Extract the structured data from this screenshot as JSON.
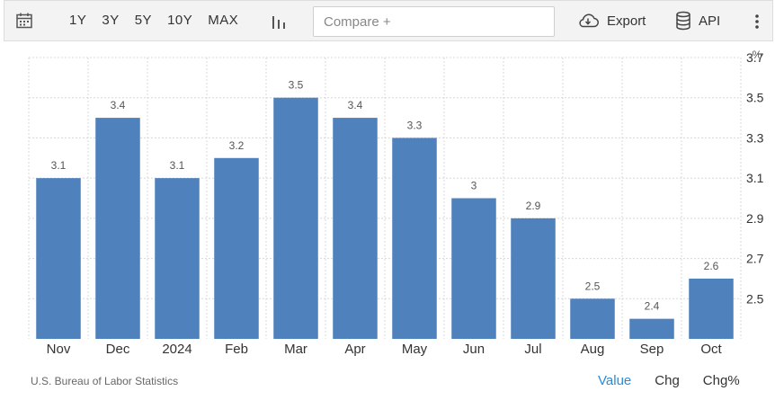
{
  "toolbar": {
    "ranges": [
      "1Y",
      "3Y",
      "5Y",
      "10Y",
      "MAX"
    ],
    "compare_placeholder": "Compare +",
    "export_label": "Export",
    "api_label": "API"
  },
  "colors": {
    "bar": "#4f81bd",
    "grid": "#d8d8d8",
    "active_tab": "#2a8bd8"
  },
  "icons": [
    "calendar-icon",
    "bar-chart-icon",
    "cloud-download-icon",
    "database-icon",
    "more-vertical-icon"
  ],
  "chart_data": {
    "type": "bar",
    "categories": [
      "Nov",
      "Dec",
      "2024",
      "Feb",
      "Mar",
      "Apr",
      "May",
      "Jun",
      "Jul",
      "Aug",
      "Sep",
      "Oct"
    ],
    "values": [
      3.1,
      3.4,
      3.1,
      3.2,
      3.5,
      3.4,
      3.3,
      3,
      2.9,
      2.5,
      2.4,
      2.6
    ],
    "value_labels": [
      "3.1",
      "3.4",
      "3.1",
      "3.2",
      "3.5",
      "3.4",
      "3.3",
      "3",
      "2.9",
      "2.5",
      "2.4",
      "2.6"
    ],
    "y_unit": "%",
    "ylim": [
      2.3,
      3.7
    ],
    "y_ticks": [
      2.5,
      2.7,
      2.9,
      3.1,
      3.3,
      3.5,
      3.7
    ],
    "y_tick_labels": [
      "2.5",
      "2.7",
      "2.9",
      "3.1",
      "3.3",
      "3.5",
      "3.7"
    ],
    "grid": true,
    "y_axis_side": "right"
  },
  "footer": {
    "source": "U.S. Bureau of Labor Statistics",
    "tabs": [
      "Value",
      "Chg",
      "Chg%"
    ],
    "active_tab": "Value"
  }
}
